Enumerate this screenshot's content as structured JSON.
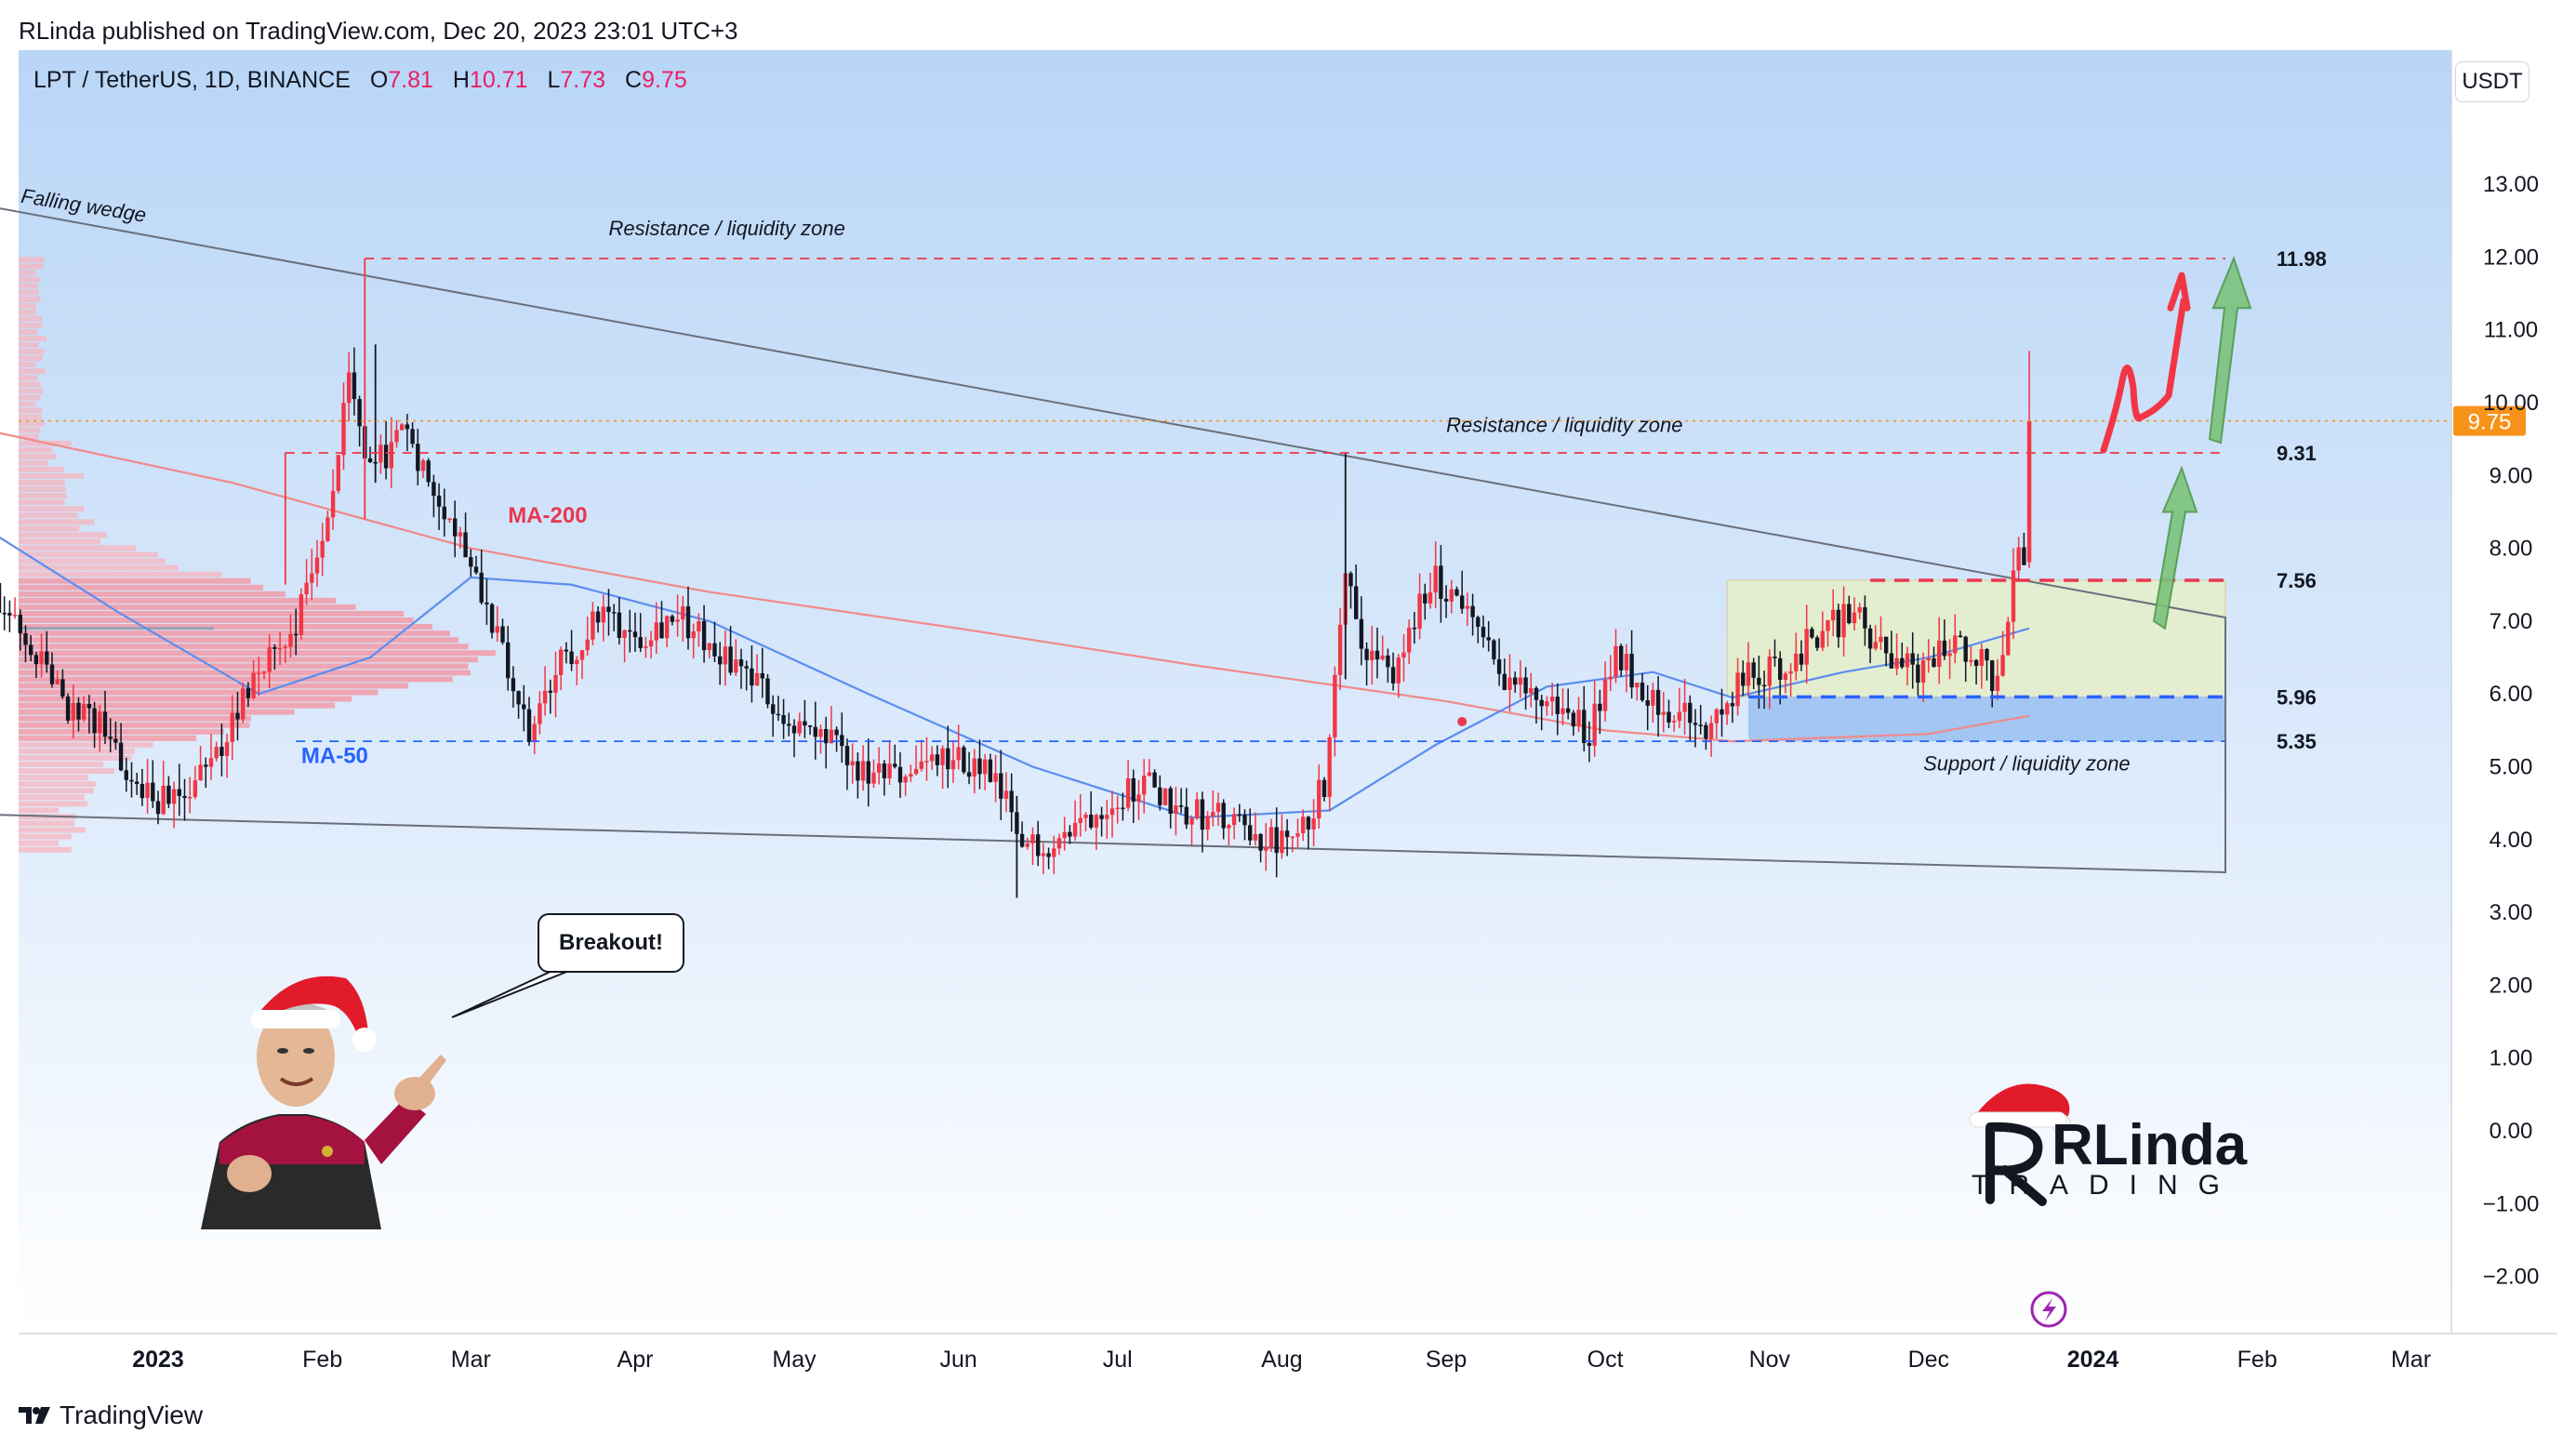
{
  "header": {
    "published": "RLinda published on TradingView.com, Dec 20, 2023 23:01 UTC+3"
  },
  "legend": {
    "symbol": "LPT / TetherUS, 1D, BINANCE",
    "o_label": "O",
    "o_value": "7.81",
    "h_label": "H",
    "h_value": "10.71",
    "l_label": "L",
    "l_value": "7.73",
    "c_label": "C",
    "c_value": "9.75"
  },
  "currency_button": "USDT",
  "footer": {
    "brand": "TradingView"
  },
  "bubble_text": "Breakout!",
  "logo": {
    "text_top": "RLinda",
    "text_bottom": "TRADING"
  },
  "colors": {
    "up": "#f23645",
    "down": "#131722",
    "ma200": "#f08a8a",
    "ma50": "#5b8def",
    "resistance": "#e8384f",
    "support": "#2962ff",
    "last_price": "#f7931a"
  },
  "chart_data": {
    "type": "candlestick",
    "y_axis": {
      "min": -2.5,
      "max": 14.5,
      "ticks": [
        -2,
        -1,
        0,
        1,
        2,
        3,
        4,
        5,
        6,
        7,
        8,
        9,
        10,
        11,
        12,
        13
      ],
      "tick_labels": [
        "−2.00",
        "−1.00",
        "0.00",
        "1.00",
        "2.00",
        "3.00",
        "4.00",
        "5.00",
        "6.00",
        "7.00",
        "8.00",
        "9.00",
        "10.00",
        "11.00",
        "12.00",
        "13.00"
      ]
    },
    "x_axis": {
      "labels": [
        {
          "text": "2023",
          "date": "2023-01-01",
          "bold": true
        },
        {
          "text": "Feb",
          "date": "2023-02-01"
        },
        {
          "text": "Mar",
          "date": "2023-03-01"
        },
        {
          "text": "Apr",
          "date": "2023-04-01"
        },
        {
          "text": "May",
          "date": "2023-05-01"
        },
        {
          "text": "Jun",
          "date": "2023-06-01"
        },
        {
          "text": "Jul",
          "date": "2023-07-01"
        },
        {
          "text": "Aug",
          "date": "2023-08-01"
        },
        {
          "text": "Sep",
          "date": "2023-09-01"
        },
        {
          "text": "Oct",
          "date": "2023-10-01"
        },
        {
          "text": "Nov",
          "date": "2023-11-01"
        },
        {
          "text": "Dec",
          "date": "2023-12-01"
        },
        {
          "text": "2024",
          "date": "2024-01-01",
          "bold": true
        },
        {
          "text": "Feb",
          "date": "2024-02-01"
        },
        {
          "text": "Mar",
          "date": "2024-03-01"
        }
      ]
    },
    "close_path": [
      {
        "date": "2022-12-01",
        "close": 7.3
      },
      {
        "date": "2022-12-08",
        "close": 6.6
      },
      {
        "date": "2022-12-15",
        "close": 5.8
      },
      {
        "date": "2022-12-22",
        "close": 5.5
      },
      {
        "date": "2022-12-29",
        "close": 4.6
      },
      {
        "date": "2023-01-05",
        "close": 4.5
      },
      {
        "date": "2023-01-12",
        "close": 5.1
      },
      {
        "date": "2023-01-19",
        "close": 6.3
      },
      {
        "date": "2023-01-26",
        "close": 6.8
      },
      {
        "date": "2023-02-01",
        "close": 8.1
      },
      {
        "date": "2023-02-06",
        "close": 10.2
      },
      {
        "date": "2023-02-10",
        "close": 9.0
      },
      {
        "date": "2023-02-16",
        "close": 9.6
      },
      {
        "date": "2023-02-22",
        "close": 8.9
      },
      {
        "date": "2023-03-02",
        "close": 7.7
      },
      {
        "date": "2023-03-07",
        "close": 6.5
      },
      {
        "date": "2023-03-12",
        "close": 5.4
      },
      {
        "date": "2023-03-18",
        "close": 6.4
      },
      {
        "date": "2023-03-26",
        "close": 7.1
      },
      {
        "date": "2023-04-01",
        "close": 6.8
      },
      {
        "date": "2023-04-09",
        "close": 7.1
      },
      {
        "date": "2023-04-16",
        "close": 6.6
      },
      {
        "date": "2023-04-22",
        "close": 6.3
      },
      {
        "date": "2023-04-30",
        "close": 5.6
      },
      {
        "date": "2023-05-08",
        "close": 5.3
      },
      {
        "date": "2023-05-15",
        "close": 4.8
      },
      {
        "date": "2023-05-22",
        "close": 4.9
      },
      {
        "date": "2023-05-29",
        "close": 5.1
      },
      {
        "date": "2023-06-05",
        "close": 5.0
      },
      {
        "date": "2023-06-10",
        "close": 4.5
      },
      {
        "date": "2023-06-12",
        "close": 3.9
      },
      {
        "date": "2023-06-20",
        "close": 4.0
      },
      {
        "date": "2023-06-28",
        "close": 4.5
      },
      {
        "date": "2023-07-06",
        "close": 4.8
      },
      {
        "date": "2023-07-14",
        "close": 4.4
      },
      {
        "date": "2023-07-20",
        "close": 4.3
      },
      {
        "date": "2023-07-27",
        "close": 4.0
      },
      {
        "date": "2023-08-04",
        "close": 3.95
      },
      {
        "date": "2023-08-09",
        "close": 4.8
      },
      {
        "date": "2023-08-13",
        "close": 7.8
      },
      {
        "date": "2023-08-17",
        "close": 6.5
      },
      {
        "date": "2023-08-23",
        "close": 6.3
      },
      {
        "date": "2023-08-29",
        "close": 7.6
      },
      {
        "date": "2023-09-04",
        "close": 7.3
      },
      {
        "date": "2023-09-10",
        "close": 6.4
      },
      {
        "date": "2023-09-16",
        "close": 6.0
      },
      {
        "date": "2023-09-22",
        "close": 5.8
      },
      {
        "date": "2023-09-28",
        "close": 5.5
      },
      {
        "date": "2023-10-03",
        "close": 6.6
      },
      {
        "date": "2023-10-09",
        "close": 6.0
      },
      {
        "date": "2023-10-15",
        "close": 5.7
      },
      {
        "date": "2023-10-21",
        "close": 5.5
      },
      {
        "date": "2023-10-27",
        "close": 6.2
      },
      {
        "date": "2023-11-04",
        "close": 6.4
      },
      {
        "date": "2023-11-11",
        "close": 6.9
      },
      {
        "date": "2023-11-17",
        "close": 7.1
      },
      {
        "date": "2023-11-23",
        "close": 6.5
      },
      {
        "date": "2023-11-29",
        "close": 6.3
      },
      {
        "date": "2023-12-05",
        "close": 6.7
      },
      {
        "date": "2023-12-10",
        "close": 6.6
      },
      {
        "date": "2023-12-13",
        "close": 6.2
      },
      {
        "date": "2023-12-16",
        "close": 7.0
      },
      {
        "date": "2023-12-18",
        "close": 8.0
      },
      {
        "date": "2023-12-19",
        "close": 7.8
      },
      {
        "date": "2023-12-20",
        "close": 9.75
      }
    ],
    "ma200": [
      {
        "date": "2022-12-01",
        "value": 9.6
      },
      {
        "date": "2023-01-15",
        "value": 8.9
      },
      {
        "date": "2023-03-01",
        "value": 8.0
      },
      {
        "date": "2023-04-15",
        "value": 7.4
      },
      {
        "date": "2023-06-01",
        "value": 6.9
      },
      {
        "date": "2023-07-15",
        "value": 6.4
      },
      {
        "date": "2023-09-01",
        "value": 5.9
      },
      {
        "date": "2023-10-01",
        "value": 5.5
      },
      {
        "date": "2023-10-25",
        "value": 5.35
      },
      {
        "date": "2023-12-01",
        "value": 5.45
      },
      {
        "date": "2023-12-20",
        "value": 5.7
      }
    ],
    "ma50": [
      {
        "date": "2022-12-01",
        "value": 8.2
      },
      {
        "date": "2022-12-25",
        "value": 7.1
      },
      {
        "date": "2023-01-20",
        "value": 6.0
      },
      {
        "date": "2023-02-10",
        "value": 6.5
      },
      {
        "date": "2023-03-01",
        "value": 7.6
      },
      {
        "date": "2023-03-20",
        "value": 7.5
      },
      {
        "date": "2023-04-15",
        "value": 7.0
      },
      {
        "date": "2023-05-15",
        "value": 6.0
      },
      {
        "date": "2023-06-15",
        "value": 5.0
      },
      {
        "date": "2023-07-15",
        "value": 4.3
      },
      {
        "date": "2023-08-10",
        "value": 4.4
      },
      {
        "date": "2023-08-30",
        "value": 5.3
      },
      {
        "date": "2023-09-20",
        "value": 6.1
      },
      {
        "date": "2023-10-10",
        "value": 6.3
      },
      {
        "date": "2023-10-25",
        "value": 5.95
      },
      {
        "date": "2023-11-15",
        "value": 6.3
      },
      {
        "date": "2023-12-01",
        "value": 6.5
      },
      {
        "date": "2023-12-20",
        "value": 6.9
      }
    ],
    "last_price": {
      "value": 9.75,
      "label": "9.75"
    },
    "levels": [
      {
        "value": 11.98,
        "label": "11.98",
        "style": "resistance",
        "from": "2023-02-09",
        "to": "2024-01-26"
      },
      {
        "value": 9.31,
        "label": "9.31",
        "style": "resistance",
        "from": "2023-01-25",
        "to": "2024-01-26"
      },
      {
        "value": 7.56,
        "label": "7.56",
        "style": "resistance-bold",
        "from": "2023-11-20",
        "to": "2024-01-26"
      },
      {
        "value": 5.96,
        "label": "5.96",
        "style": "support-bold",
        "from": "2023-10-28",
        "to": "2024-01-26"
      },
      {
        "value": 5.35,
        "label": "5.35",
        "style": "support",
        "from": "2023-01-27",
        "to": "2024-01-26"
      }
    ],
    "annotations": [
      {
        "text": "Falling wedge",
        "date": "2022-12-06",
        "value": 12.75,
        "rotate": 9
      },
      {
        "text": "Resistance / liquidity zone",
        "date": "2023-03-27",
        "value": 12.3
      },
      {
        "text": "Resistance / liquidity zone",
        "date": "2023-09-01",
        "value": 9.6
      },
      {
        "text": "Support / liquidity zone",
        "date": "2023-11-30",
        "value": 4.95
      },
      {
        "text": "MA-200",
        "date": "2023-03-08",
        "value": 8.35
      },
      {
        "text": "MA-50",
        "date": "2023-01-28",
        "value": 5.05
      }
    ]
  }
}
